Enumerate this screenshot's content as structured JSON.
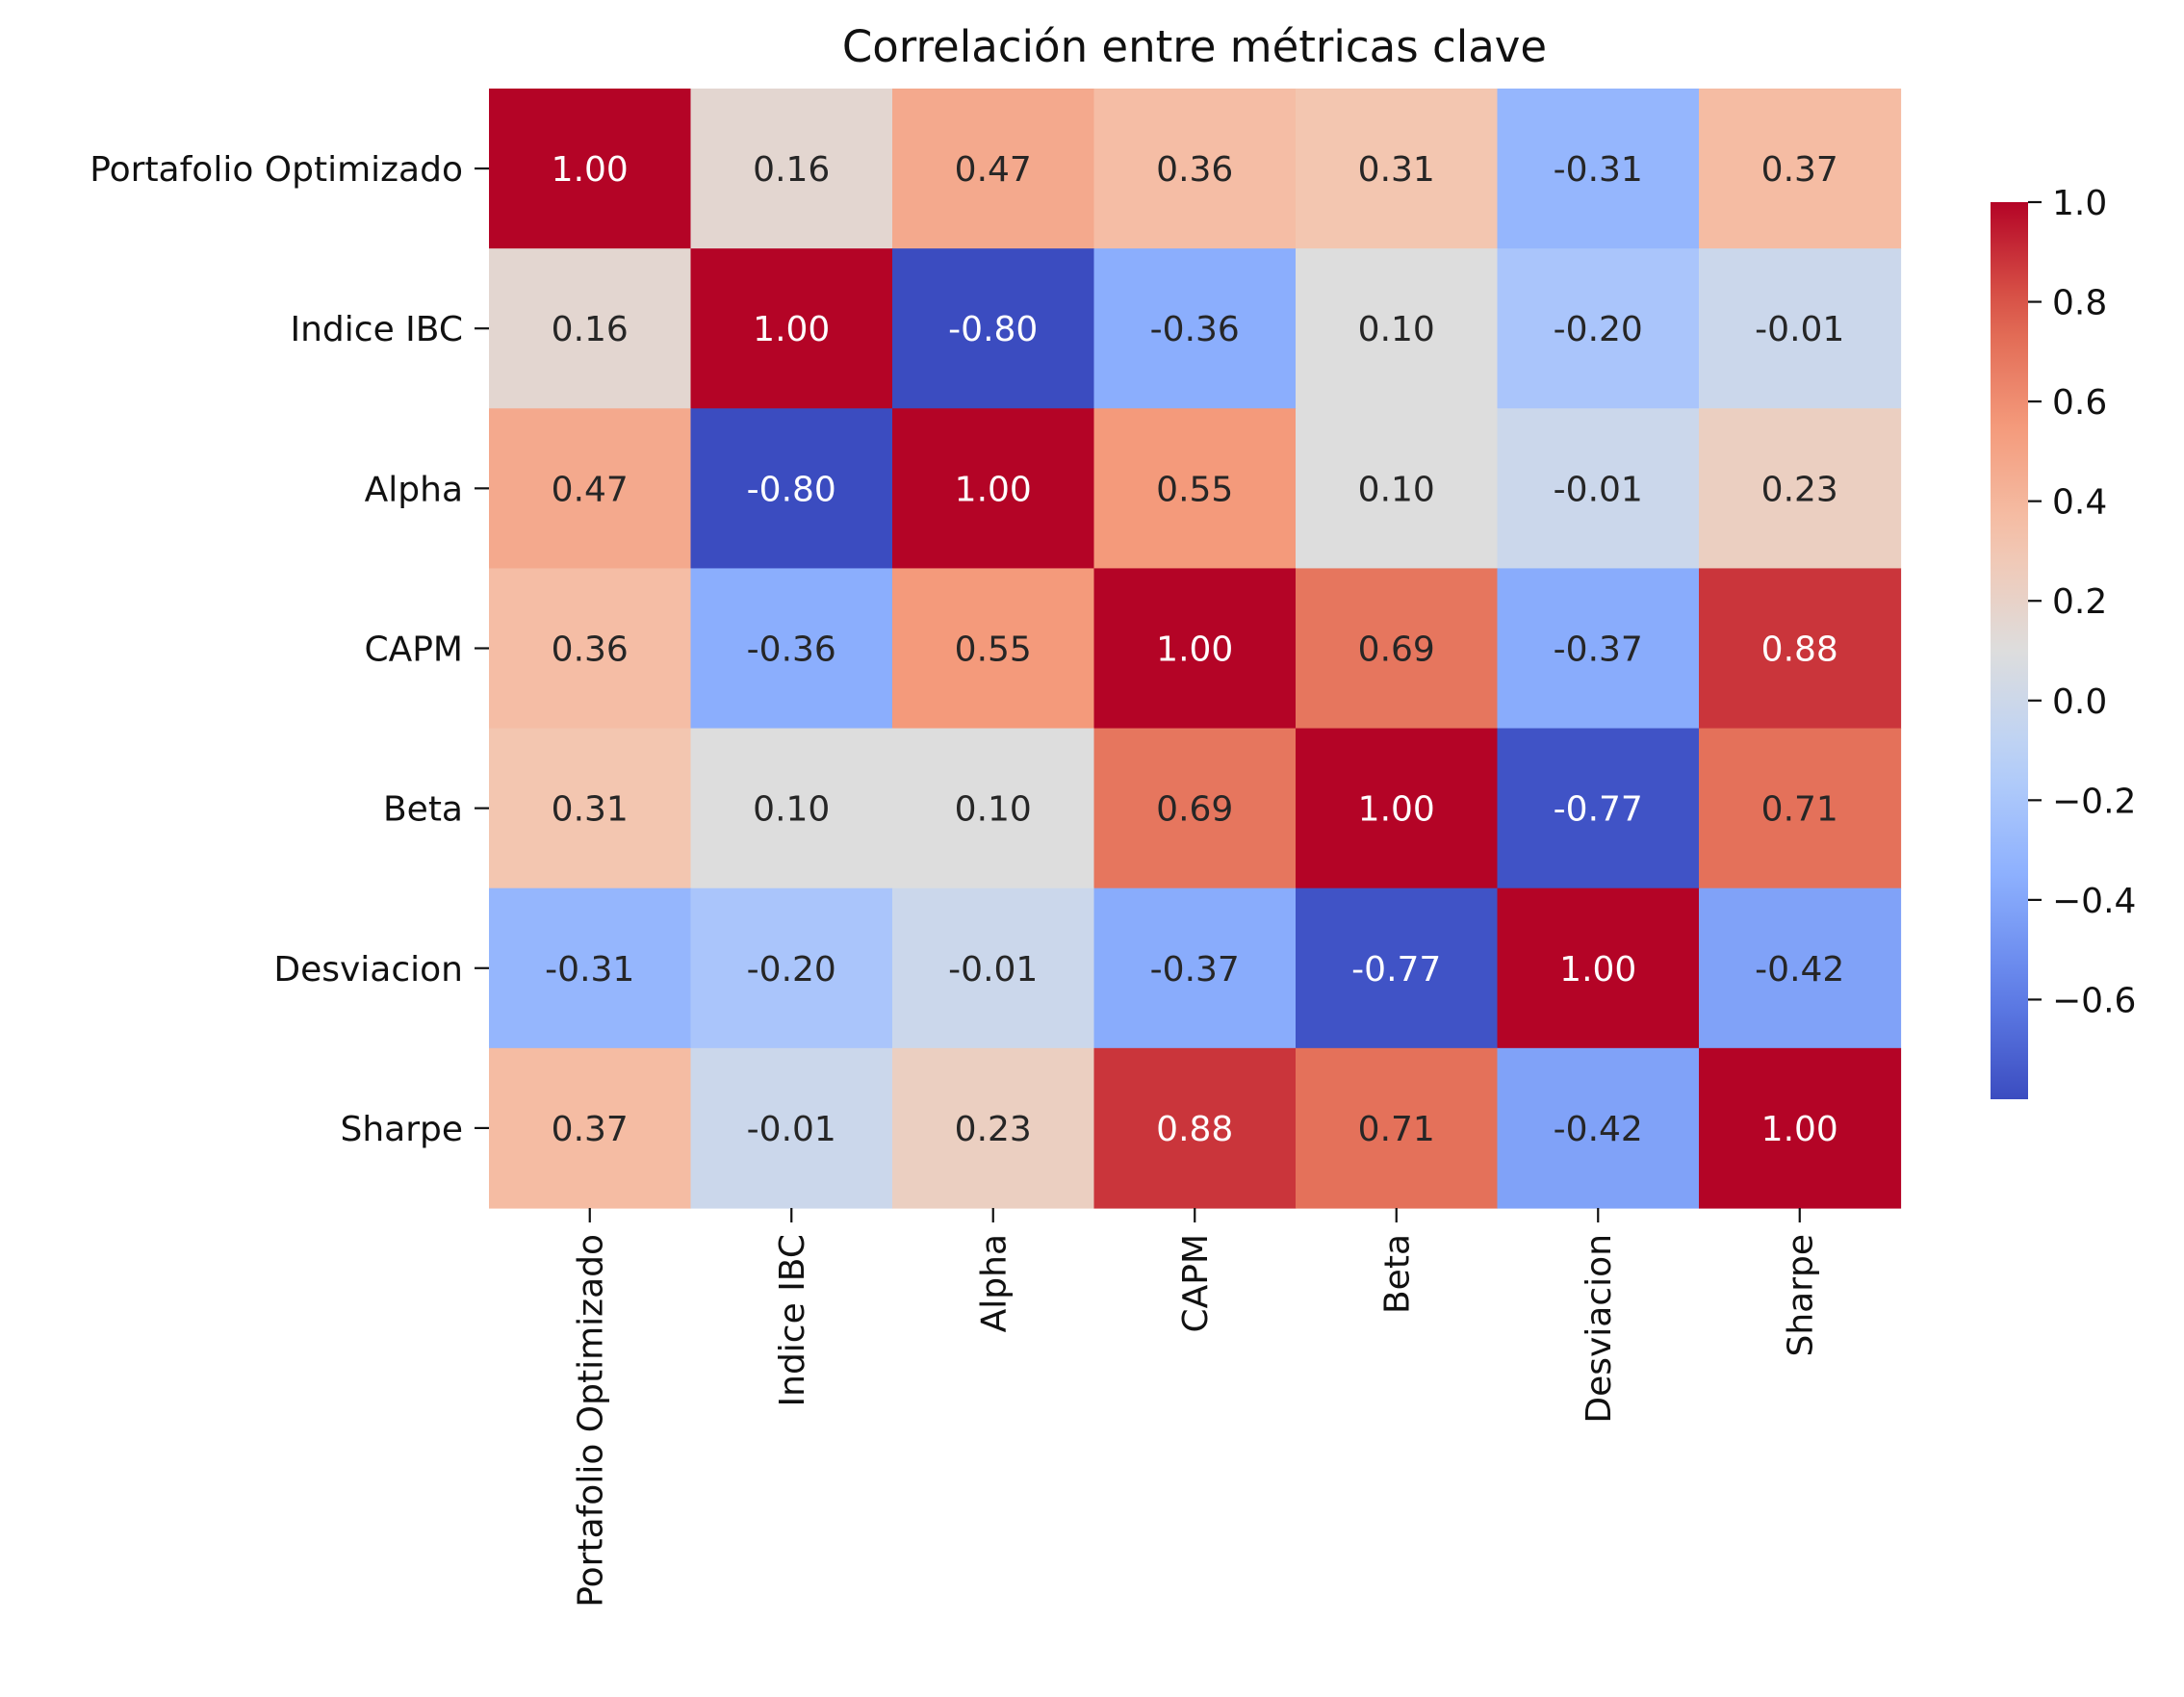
{
  "chart_data": {
    "type": "heatmap",
    "title": "Correlación entre métricas clave",
    "xlabel": "",
    "ylabel": "",
    "row_labels": [
      "Portafolio Optimizado",
      "Indice IBC",
      "Alpha",
      "CAPM",
      "Beta",
      "Desviacion",
      "Sharpe"
    ],
    "col_labels": [
      "Portafolio Optimizado",
      "Indice IBC",
      "Alpha",
      "CAPM",
      "Beta",
      "Desviacion",
      "Sharpe"
    ],
    "values": [
      [
        1.0,
        0.16,
        0.47,
        0.36,
        0.31,
        -0.31,
        0.37
      ],
      [
        0.16,
        1.0,
        -0.8,
        -0.36,
        0.1,
        -0.2,
        -0.01
      ],
      [
        0.47,
        -0.8,
        1.0,
        0.55,
        0.1,
        -0.01,
        0.23
      ],
      [
        0.36,
        -0.36,
        0.55,
        1.0,
        0.69,
        -0.37,
        0.88
      ],
      [
        0.31,
        0.1,
        0.1,
        0.69,
        1.0,
        -0.77,
        0.71
      ],
      [
        -0.31,
        -0.2,
        -0.01,
        -0.37,
        -0.77,
        1.0,
        -0.42
      ],
      [
        0.37,
        -0.01,
        0.23,
        0.88,
        0.71,
        -0.42,
        1.0
      ]
    ],
    "cell_text": [
      [
        "1.00",
        "0.16",
        "0.47",
        "0.36",
        "0.31",
        "-0.31",
        "0.37"
      ],
      [
        "0.16",
        "1.00",
        "-0.80",
        "-0.36",
        "0.10",
        "-0.20",
        "-0.01"
      ],
      [
        "0.47",
        "-0.80",
        "1.00",
        "0.55",
        "0.10",
        "-0.01",
        "0.23"
      ],
      [
        "0.36",
        "-0.36",
        "0.55",
        "1.00",
        "0.69",
        "-0.37",
        "0.88"
      ],
      [
        "0.31",
        "0.10",
        "0.10",
        "0.69",
        "1.00",
        "-0.77",
        "0.71"
      ],
      [
        "-0.31",
        "-0.20",
        "-0.01",
        "-0.37",
        "-0.77",
        "1.00",
        "-0.42"
      ],
      [
        "0.37",
        "-0.01",
        "0.23",
        "0.88",
        "0.71",
        "-0.42",
        "1.00"
      ]
    ],
    "colormap": "coolwarm",
    "vmin": -0.8,
    "vmax": 1.0,
    "colorbar": {
      "placement": "right",
      "ticks": [
        1.0,
        0.8,
        0.6,
        0.4,
        0.2,
        0.0,
        -0.2,
        -0.4,
        -0.6
      ],
      "tick_labels": [
        "1.0",
        "0.8",
        "0.6",
        "0.4",
        "0.2",
        "0.0",
        "−0.2",
        "−0.4",
        "−0.6"
      ]
    },
    "grid": false
  }
}
